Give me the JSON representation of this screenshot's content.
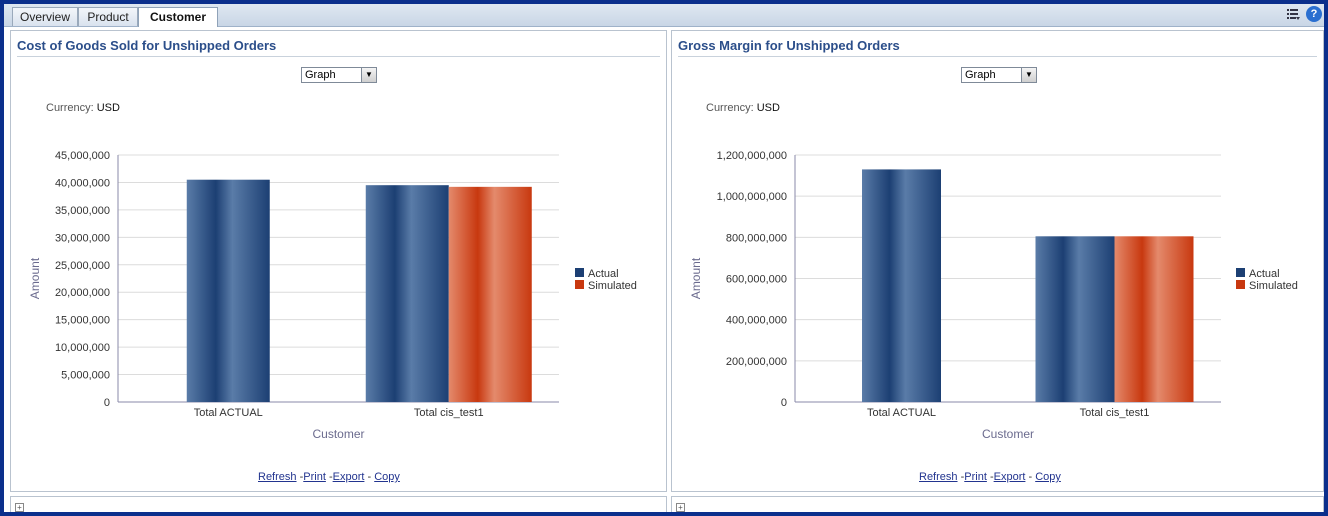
{
  "tabs": [
    {
      "label": "Overview",
      "active": false
    },
    {
      "label": "Product",
      "active": false
    },
    {
      "label": "Customer",
      "active": true
    }
  ],
  "tabbar_icons": [
    "list-menu-icon",
    "help-icon"
  ],
  "colors": {
    "actual": "#1c3f73",
    "simulated": "#c8380f",
    "title": "#2b4e8a",
    "axis_label": "#6b6b8e"
  },
  "panels": [
    {
      "title": "Cost of Goods Sold for Unshipped Orders",
      "view_select": "Graph",
      "currency_label": "Currency:",
      "currency_value": "USD",
      "links": {
        "refresh": "Refresh",
        "print": "Print",
        "export": "Export",
        "copy": "Copy"
      },
      "chart_data": {
        "type": "bar",
        "categories": [
          "Total ACTUAL",
          "Total cis_test1"
        ],
        "series": [
          {
            "name": "Actual",
            "values": [
              40500000,
              39500000
            ]
          },
          {
            "name": "Simulated",
            "values": [
              null,
              39200000
            ]
          }
        ],
        "xlabel": "Customer",
        "ylabel": "Amount",
        "ylim": [
          0,
          45000000
        ],
        "yticks": [
          "0",
          "5,000,000",
          "10,000,000",
          "15,000,000",
          "20,000,000",
          "25,000,000",
          "30,000,000",
          "35,000,000",
          "40,000,000",
          "45,000,000"
        ],
        "legend": "right",
        "grid": true
      }
    },
    {
      "title": "Gross Margin for Unshipped Orders",
      "view_select": "Graph",
      "currency_label": "Currency:",
      "currency_value": "USD",
      "links": {
        "refresh": "Refresh",
        "print": "Print",
        "export": "Export",
        "copy": "Copy"
      },
      "chart_data": {
        "type": "bar",
        "categories": [
          "Total ACTUAL",
          "Total cis_test1"
        ],
        "series": [
          {
            "name": "Actual",
            "values": [
              1130000000,
              805000000
            ]
          },
          {
            "name": "Simulated",
            "values": [
              null,
              805000000
            ]
          }
        ],
        "xlabel": "Customer",
        "ylabel": "Amount",
        "ylim": [
          0,
          1200000000
        ],
        "yticks": [
          "0",
          "200,000,000",
          "400,000,000",
          "600,000,000",
          "800,000,000",
          "1,000,000,000",
          "1,200,000,000"
        ],
        "legend": "right",
        "grid": true
      }
    }
  ]
}
